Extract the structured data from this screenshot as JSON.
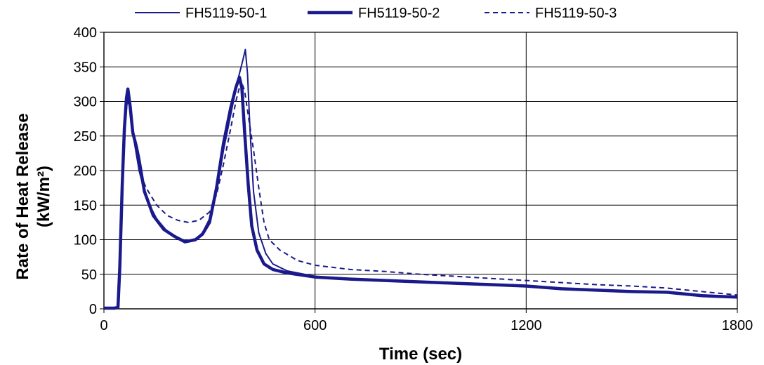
{
  "chart_data": {
    "type": "line",
    "title": "",
    "xlabel": "Time (sec)",
    "ylabel_line1": "Rate of Heat Release",
    "ylabel_line2": "(kW/m²)",
    "xlim": [
      0,
      1800
    ],
    "ylim": [
      0,
      400
    ],
    "x_ticks": [
      0,
      600,
      1200,
      1800
    ],
    "y_ticks": [
      0,
      50,
      100,
      150,
      200,
      250,
      300,
      350,
      400
    ],
    "grid": true,
    "legend_position": "top",
    "line_color": "#1a1a8c",
    "series": [
      {
        "name": "FH5119-50-1",
        "style": "thin-solid",
        "points": [
          [
            0,
            1
          ],
          [
            30,
            1
          ],
          [
            40,
            2
          ],
          [
            48,
            80
          ],
          [
            55,
            200
          ],
          [
            62,
            280
          ],
          [
            68,
            310
          ],
          [
            72,
            300
          ],
          [
            80,
            260
          ],
          [
            90,
            230
          ],
          [
            100,
            200
          ],
          [
            120,
            160
          ],
          [
            150,
            130
          ],
          [
            180,
            112
          ],
          [
            210,
            102
          ],
          [
            240,
            98
          ],
          [
            260,
            100
          ],
          [
            280,
            110
          ],
          [
            300,
            130
          ],
          [
            320,
            170
          ],
          [
            340,
            230
          ],
          [
            360,
            280
          ],
          [
            380,
            330
          ],
          [
            395,
            360
          ],
          [
            402,
            375
          ],
          [
            408,
            340
          ],
          [
            415,
            260
          ],
          [
            425,
            170
          ],
          [
            440,
            110
          ],
          [
            460,
            80
          ],
          [
            480,
            65
          ],
          [
            520,
            55
          ],
          [
            600,
            47
          ],
          [
            700,
            44
          ],
          [
            800,
            41
          ],
          [
            900,
            39
          ],
          [
            1000,
            37
          ],
          [
            1100,
            35
          ],
          [
            1200,
            33
          ],
          [
            1300,
            30
          ],
          [
            1400,
            27
          ],
          [
            1500,
            25
          ],
          [
            1600,
            24
          ],
          [
            1700,
            20
          ],
          [
            1800,
            17
          ]
        ]
      },
      {
        "name": "FH5119-50-2",
        "style": "thick-solid",
        "points": [
          [
            0,
            1
          ],
          [
            30,
            1
          ],
          [
            40,
            2
          ],
          [
            45,
            60
          ],
          [
            52,
            180
          ],
          [
            58,
            260
          ],
          [
            64,
            305
          ],
          [
            68,
            318
          ],
          [
            74,
            295
          ],
          [
            82,
            255
          ],
          [
            92,
            235
          ],
          [
            100,
            215
          ],
          [
            115,
            170
          ],
          [
            140,
            135
          ],
          [
            170,
            115
          ],
          [
            200,
            105
          ],
          [
            230,
            97
          ],
          [
            260,
            100
          ],
          [
            280,
            108
          ],
          [
            300,
            125
          ],
          [
            320,
            175
          ],
          [
            340,
            240
          ],
          [
            360,
            290
          ],
          [
            375,
            320
          ],
          [
            385,
            335
          ],
          [
            392,
            320
          ],
          [
            400,
            255
          ],
          [
            410,
            180
          ],
          [
            420,
            120
          ],
          [
            435,
            85
          ],
          [
            455,
            65
          ],
          [
            480,
            57
          ],
          [
            520,
            52
          ],
          [
            600,
            46
          ],
          [
            700,
            43
          ],
          [
            800,
            41
          ],
          [
            900,
            39
          ],
          [
            1000,
            37
          ],
          [
            1100,
            35
          ],
          [
            1200,
            33
          ],
          [
            1300,
            29
          ],
          [
            1400,
            27
          ],
          [
            1500,
            25
          ],
          [
            1600,
            24
          ],
          [
            1700,
            19
          ],
          [
            1800,
            17
          ]
        ]
      },
      {
        "name": "FH5119-50-3",
        "style": "dashed",
        "points": [
          [
            0,
            1
          ],
          [
            30,
            1
          ],
          [
            40,
            2
          ],
          [
            46,
            70
          ],
          [
            53,
            190
          ],
          [
            60,
            270
          ],
          [
            66,
            300
          ],
          [
            72,
            295
          ],
          [
            80,
            265
          ],
          [
            90,
            235
          ],
          [
            100,
            200
          ],
          [
            120,
            175
          ],
          [
            150,
            150
          ],
          [
            180,
            135
          ],
          [
            210,
            128
          ],
          [
            240,
            125
          ],
          [
            270,
            128
          ],
          [
            300,
            140
          ],
          [
            320,
            165
          ],
          [
            340,
            210
          ],
          [
            360,
            260
          ],
          [
            375,
            300
          ],
          [
            390,
            330
          ],
          [
            400,
            315
          ],
          [
            410,
            280
          ],
          [
            425,
            230
          ],
          [
            440,
            175
          ],
          [
            455,
            125
          ],
          [
            470,
            100
          ],
          [
            500,
            85
          ],
          [
            550,
            70
          ],
          [
            600,
            63
          ],
          [
            700,
            57
          ],
          [
            800,
            54
          ],
          [
            900,
            50
          ],
          [
            1000,
            47
          ],
          [
            1100,
            44
          ],
          [
            1200,
            41
          ],
          [
            1300,
            38
          ],
          [
            1400,
            35
          ],
          [
            1500,
            33
          ],
          [
            1600,
            30
          ],
          [
            1700,
            25
          ],
          [
            1800,
            20
          ]
        ]
      }
    ]
  }
}
